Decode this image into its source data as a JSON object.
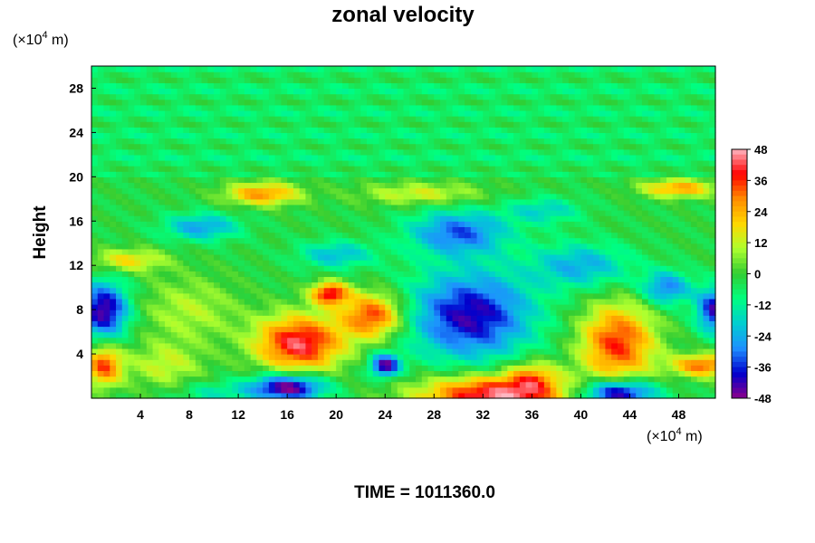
{
  "chart_data": {
    "type": "heatmap",
    "title": "zonal velocity",
    "ylabel": "Height",
    "xunit_prefix": "(×10",
    "xunit_exp": "4",
    "xunit_suffix": " m)",
    "yunit_prefix": "(×10",
    "yunit_exp": "4",
    "yunit_suffix": " m)",
    "xlim": [
      0,
      51
    ],
    "ylim": [
      0,
      30
    ],
    "x_ticks": [
      4,
      8,
      12,
      16,
      20,
      24,
      28,
      32,
      36,
      40,
      44,
      48
    ],
    "y_ticks": [
      4,
      8,
      12,
      16,
      20,
      24,
      28
    ],
    "colorbar": {
      "range": [
        -48,
        48
      ],
      "ticks": [
        48,
        36,
        24,
        12,
        0,
        -12,
        -24,
        -36,
        -48
      ],
      "colors": [
        "#8b008b",
        "#0000cd",
        "#1e90ff",
        "#00ced1",
        "#00ff7f",
        "#32cd32",
        "#adff2f",
        "#ffd700",
        "#ff8c00",
        "#ff0000",
        "#ffb6c1"
      ]
    },
    "background_value": -2,
    "features": [
      {
        "x": 33,
        "y": 0.3,
        "rx": 6,
        "ry": 1.8,
        "value": 48
      },
      {
        "x": 31,
        "y": 7.5,
        "rx": 5,
        "ry": 4,
        "value": -40
      },
      {
        "x": 43,
        "y": 5,
        "rx": 3,
        "ry": 3.5,
        "value": 38
      },
      {
        "x": 17,
        "y": 5,
        "rx": 3.5,
        "ry": 2.5,
        "value": 45
      },
      {
        "x": 16,
        "y": 1,
        "rx": 3,
        "ry": 1.2,
        "value": -48
      },
      {
        "x": 43,
        "y": 0.5,
        "rx": 3,
        "ry": 1.2,
        "value": -48
      },
      {
        "x": 23,
        "y": 7.5,
        "rx": 2.5,
        "ry": 2,
        "value": 38
      },
      {
        "x": 19.5,
        "y": 9.5,
        "rx": 1.5,
        "ry": 1,
        "value": 42
      },
      {
        "x": 1,
        "y": 8,
        "rx": 2,
        "ry": 2.5,
        "value": -44
      },
      {
        "x": 1,
        "y": 3,
        "rx": 1.5,
        "ry": 1.8,
        "value": 36
      },
      {
        "x": 50,
        "y": 3,
        "rx": 2.5,
        "ry": 1,
        "value": 34
      },
      {
        "x": 51,
        "y": 8,
        "rx": 1.5,
        "ry": 2,
        "value": -40
      },
      {
        "x": 24,
        "y": 3,
        "rx": 1.2,
        "ry": 1,
        "value": -44
      },
      {
        "x": 30,
        "y": 15,
        "rx": 4,
        "ry": 2,
        "value": -30
      },
      {
        "x": 9,
        "y": 15.5,
        "rx": 3,
        "ry": 1.2,
        "value": -24
      },
      {
        "x": 20,
        "y": 13,
        "rx": 3,
        "ry": 1.2,
        "value": -20
      },
      {
        "x": 14,
        "y": 18.5,
        "rx": 3,
        "ry": 1,
        "value": 30
      },
      {
        "x": 8,
        "y": 8,
        "rx": 4,
        "ry": 3,
        "value": 12
      },
      {
        "x": 40,
        "y": 12,
        "rx": 4,
        "ry": 2,
        "value": -22
      },
      {
        "x": 47,
        "y": 10,
        "rx": 2,
        "ry": 1.5,
        "value": -28
      },
      {
        "x": 37,
        "y": 17,
        "rx": 3,
        "ry": 1.2,
        "value": -16
      },
      {
        "x": 27,
        "y": 18.5,
        "rx": 5,
        "ry": 1,
        "value": 16
      },
      {
        "x": 3,
        "y": 12.5,
        "rx": 3,
        "ry": 1,
        "value": 20
      },
      {
        "x": 6,
        "y": 3,
        "rx": 3,
        "ry": 2,
        "value": 14
      },
      {
        "x": 48,
        "y": 19,
        "rx": 3,
        "ry": 0.8,
        "value": 28
      },
      {
        "x": 36,
        "y": 2,
        "rx": 2,
        "ry": 1.5,
        "value": 22
      },
      {
        "x": 10,
        "y": 0.5,
        "rx": 3,
        "ry": 1,
        "value": -12
      }
    ]
  },
  "footer": {
    "time_label": "TIME = 1011360.0"
  }
}
